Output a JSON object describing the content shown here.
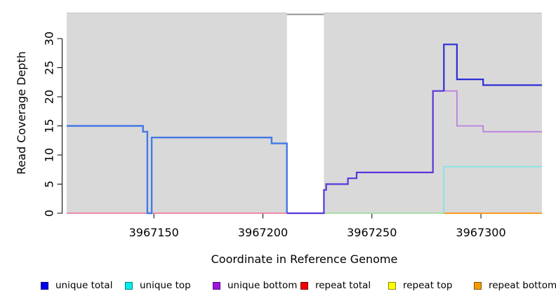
{
  "window": {
    "background": "#ffffff",
    "text_color": "#000000"
  },
  "chart_data": {
    "type": "line",
    "title": "",
    "xlabel": "Coordinate in Reference Genome",
    "ylabel": "Read Coverage Depth",
    "xlim": [
      3967110,
      3967328
    ],
    "ylim": [
      0,
      34.46
    ],
    "xticks": [
      "3967150",
      "3967200",
      "3967250",
      "3967300"
    ],
    "xtick_values": [
      3967150,
      3967200,
      3967250,
      3967300
    ],
    "yticks": [
      "0",
      "5",
      "10",
      "15",
      "20",
      "25",
      "30"
    ],
    "ytick_values": [
      0,
      5,
      10,
      15,
      20,
      25,
      30
    ],
    "grid": false,
    "plot_background": "#d9d9d9",
    "plot_top_border_color": "#c2c2c2",
    "axis_color": "#000000",
    "masked_region": {
      "x0": 3967211,
      "x1": 3967228,
      "fill": "#ffffff",
      "top_marker_color": "#919191"
    },
    "series": [
      {
        "id": "repeat-total-zero",
        "name": "repeat total (at 0, left)",
        "color": "#ee7f9d",
        "width": 1.8,
        "points": [
          [
            3967110,
            0
          ],
          [
            3967211,
            0
          ]
        ]
      },
      {
        "id": "unique-top-repeat-top-zero",
        "name": "unique top + repeat top (at 0, middle)",
        "color": "#9fdc9f",
        "width": 1.8,
        "points": [
          [
            3967228,
            0
          ],
          [
            3967283,
            0
          ]
        ]
      },
      {
        "id": "repeat-bottom-zero",
        "name": "repeat bottom (at 0, right)",
        "color": "#ff9a1e",
        "width": 2,
        "points": [
          [
            3967283,
            0
          ],
          [
            3967328,
            0
          ]
        ]
      },
      {
        "id": "unique-top",
        "name": "unique top",
        "color": "#7fe5e5",
        "width": 1.8,
        "points": [
          [
            3967283,
            0
          ],
          [
            3967283,
            8
          ],
          [
            3967328,
            8
          ]
        ]
      },
      {
        "id": "unique-bottom-right",
        "name": "unique bottom (right)",
        "color": "#bd80de",
        "width": 1.8,
        "points": [
          [
            3967278,
            21
          ],
          [
            3967289,
            21
          ],
          [
            3967289,
            15
          ],
          [
            3967301,
            15
          ],
          [
            3967301,
            14
          ],
          [
            3967328,
            14
          ]
        ]
      },
      {
        "id": "unique-total-left",
        "name": "unique total (left of gap)",
        "color": "#4479e6",
        "width": 2.4,
        "points": [
          [
            3967110,
            15
          ],
          [
            3967145,
            15
          ],
          [
            3967145,
            14
          ],
          [
            3967147,
            14
          ],
          [
            3967147,
            0
          ],
          [
            3967149,
            0
          ],
          [
            3967149,
            13
          ],
          [
            3967204,
            13
          ],
          [
            3967204,
            12
          ],
          [
            3967211,
            12
          ],
          [
            3967211,
            0
          ]
        ]
      },
      {
        "id": "unique-total-bottom-overlap",
        "name": "unique total + unique bottom (overlap)",
        "color": "#5b36d9",
        "width": 2.2,
        "points": [
          [
            3967211,
            0
          ],
          [
            3967228,
            0
          ],
          [
            3967228,
            4
          ],
          [
            3967229,
            4
          ],
          [
            3967229,
            5
          ],
          [
            3967239,
            5
          ],
          [
            3967239,
            6
          ],
          [
            3967243,
            6
          ],
          [
            3967243,
            7
          ],
          [
            3967278,
            7
          ],
          [
            3967278,
            21
          ],
          [
            3967283,
            21
          ]
        ]
      },
      {
        "id": "unique-total-right",
        "name": "unique total (right)",
        "color": "#2e2ed6",
        "width": 2.2,
        "points": [
          [
            3967283,
            21
          ],
          [
            3967283,
            29
          ],
          [
            3967289,
            29
          ],
          [
            3967289,
            23
          ],
          [
            3967301,
            23
          ],
          [
            3967301,
            22
          ],
          [
            3967328,
            22
          ]
        ]
      }
    ],
    "legend_position": "bottom",
    "legend": [
      {
        "label": "unique total",
        "fill": "#0000ee"
      },
      {
        "label": "unique top",
        "fill": "#00eded"
      },
      {
        "label": "unique bottom",
        "fill": "#9c17dd"
      },
      {
        "label": "repeat total",
        "fill": "#ee0000"
      },
      {
        "label": "repeat top",
        "fill": "#ffff00"
      },
      {
        "label": "repeat bottom",
        "fill": "#f59b00"
      }
    ]
  }
}
